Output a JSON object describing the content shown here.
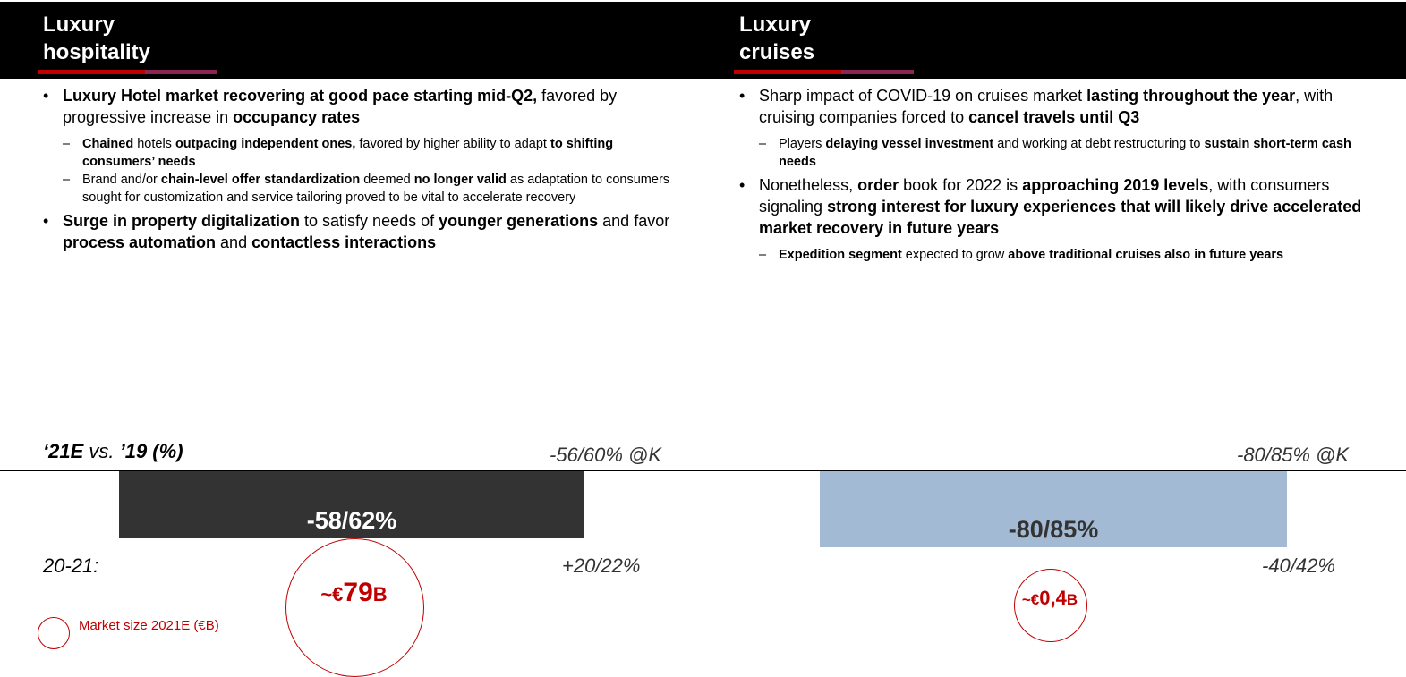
{
  "left": {
    "title_line1": "Luxury",
    "title_line2": "hospitality",
    "bullets": [
      {
        "parts": [
          {
            "t": "Luxury Hotel market recovering at good pace starting mid-Q2,",
            "b": true
          },
          {
            "t": " favored by progressive increase in ",
            "b": false
          },
          {
            "t": "occupancy rates",
            "b": true
          }
        ],
        "subs": [
          [
            {
              "t": "Chained",
              "b": true
            },
            {
              "t": " hotels ",
              "b": false
            },
            {
              "t": "outpacing independent ones,",
              "b": true
            },
            {
              "t": " favored by higher ability to adapt ",
              "b": false
            },
            {
              "t": "to shifting consumers’ needs",
              "b": true
            }
          ],
          [
            {
              "t": "Brand and/or ",
              "b": false
            },
            {
              "t": "chain-level offer standardization",
              "b": true
            },
            {
              "t": " deemed ",
              "b": false
            },
            {
              "t": "no longer valid",
              "b": true
            },
            {
              "t": " as adaptation to consumers sought for customization and service tailoring proved to be vital to accelerate recovery",
              "b": false
            }
          ]
        ]
      },
      {
        "parts": [
          {
            "t": "Surge in property digitalization",
            "b": true
          },
          {
            "t": " to satisfy needs of ",
            "b": false
          },
          {
            "t": "younger generations",
            "b": true
          },
          {
            "t": " and favor ",
            "b": false
          },
          {
            "t": "process automation",
            "b": true
          },
          {
            "t": " and ",
            "b": false
          },
          {
            "t": "contactless interactions",
            "b": true
          }
        ],
        "subs": []
      }
    ],
    "ref_top": "-56/60% @K",
    "bar_value": "-58/62%",
    "ref_bottom": "+20/22%",
    "market_size": "~€79",
    "market_unit": "B",
    "bar_color": "#333333"
  },
  "right": {
    "title_line1": "Luxury",
    "title_line2": "cruises",
    "bullets": [
      {
        "parts": [
          {
            "t": "Sharp impact of COVID-19 on cruises market ",
            "b": false
          },
          {
            "t": "lasting throughout the year",
            "b": true
          },
          {
            "t": ", with cruising companies forced to ",
            "b": false
          },
          {
            "t": "cancel travels until Q3",
            "b": true
          }
        ],
        "subs": [
          [
            {
              "t": "Players ",
              "b": false
            },
            {
              "t": "delaying vessel investment",
              "b": true
            },
            {
              "t": " and working at debt restructuring to ",
              "b": false
            },
            {
              "t": "sustain short-term cash needs",
              "b": true
            }
          ]
        ]
      },
      {
        "parts": [
          {
            "t": "Nonetheless, ",
            "b": false
          },
          {
            "t": "order",
            "b": true
          },
          {
            "t": " book for 2022 is ",
            "b": false
          },
          {
            "t": "approaching 2019 levels",
            "b": true
          },
          {
            "t": ", with consumers signaling ",
            "b": false
          },
          {
            "t": "strong interest for luxury experiences that will likely drive accelerated market recovery in future years",
            "b": true
          }
        ],
        "subs": [
          [
            {
              "t": "Expedition segment",
              "b": true
            },
            {
              "t": " expected to grow ",
              "b": false
            },
            {
              "t": "above traditional cruises also in future years",
              "b": true
            }
          ]
        ]
      }
    ],
    "ref_top": "-80/85% @K",
    "bar_value": "-80/85%",
    "ref_bottom": "-40/42%",
    "market_size": "~€0,4",
    "market_unit": "B",
    "bar_color": "#a3bad5"
  },
  "chart": {
    "row1_label_a": "‘21E",
    "row1_label_b": " vs. ",
    "row1_label_c": "’19 (%)",
    "row2_label": "20-21:"
  },
  "legend": {
    "label": "Market size 2021E (€B)"
  },
  "colors": {
    "accent_red": "#c00000",
    "accent_purple": "#8b2552"
  }
}
